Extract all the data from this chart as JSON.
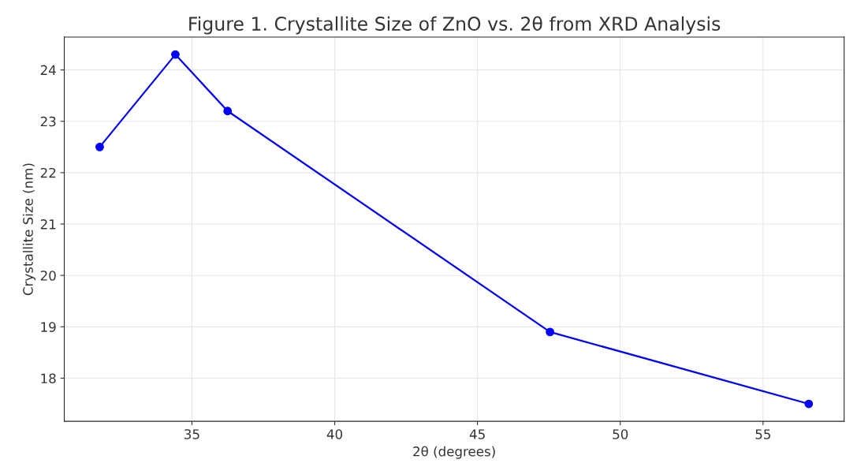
{
  "chart_data": {
    "type": "line",
    "title": "Figure 1. Crystallite Size of ZnO vs. 2θ from XRD Analysis",
    "xlabel": "2θ (degrees)",
    "ylabel": "Crystallite Size (nm)",
    "x": [
      31.77,
      34.42,
      36.25,
      47.54,
      56.6
    ],
    "series": [
      {
        "color": "#0000ff",
        "values": [
          22.5,
          24.3,
          23.2,
          18.9,
          17.5
        ]
      }
    ],
    "xlim": [
      30.53,
      57.84
    ],
    "xticks": [
      35,
      40,
      45,
      50,
      55
    ],
    "ylim": [
      17.16,
      24.64
    ],
    "yticks": [
      18,
      19,
      20,
      21,
      22,
      23,
      24
    ],
    "grid": true,
    "marker": "circle",
    "line_style": "solid"
  }
}
